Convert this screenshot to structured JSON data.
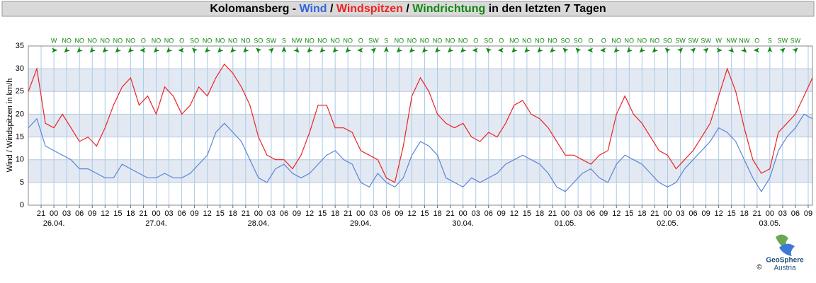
{
  "chart_data": {
    "type": "line",
    "title_parts": [
      {
        "text": "Kolomansberg - ",
        "color": "#000000"
      },
      {
        "text": "Wind",
        "color": "#3366dd"
      },
      {
        "text": " / ",
        "color": "#000000"
      },
      {
        "text": "Windspitzen",
        "color": "#ee2222"
      },
      {
        "text": " / ",
        "color": "#000000"
      },
      {
        "text": "Windrichtung",
        "color": "#118811"
      },
      {
        "text": " in den letzten 7 Tagen",
        "color": "#000000"
      }
    ],
    "ylabel": "Wind / Windspitzen in km/h",
    "x": [
      -6,
      -4,
      -2,
      0,
      2,
      4,
      6,
      8,
      10,
      12,
      14,
      16,
      18,
      20,
      22,
      24,
      26,
      28,
      30,
      32,
      34,
      36,
      38,
      40,
      42,
      44,
      46,
      48,
      50,
      52,
      54,
      56,
      58,
      60,
      62,
      64,
      66,
      68,
      70,
      72,
      74,
      76,
      78,
      80,
      82,
      84,
      86,
      88,
      90,
      92,
      94,
      96,
      98,
      100,
      102,
      104,
      106,
      108,
      110,
      112,
      114,
      116,
      118,
      120,
      122,
      124,
      126,
      128,
      130,
      132,
      134,
      136,
      138,
      140,
      142,
      144,
      146,
      148,
      150,
      152,
      154,
      156,
      158,
      160,
      162,
      164,
      166,
      168,
      170,
      172,
      174,
      176,
      178
    ],
    "series": [
      {
        "name": "Wind",
        "color": "#5b84d8",
        "values": [
          17,
          19,
          13,
          12,
          11,
          10,
          8,
          8,
          7,
          6,
          6,
          9,
          8,
          7,
          6,
          6,
          7,
          6,
          6,
          7,
          9,
          11,
          16,
          18,
          16,
          14,
          10,
          6,
          5,
          8,
          9,
          7,
          6,
          7,
          9,
          11,
          12,
          10,
          9,
          5,
          4,
          7,
          5,
          4,
          6,
          11,
          14,
          13,
          11,
          6,
          5,
          4,
          6,
          5,
          6,
          7,
          9,
          10,
          11,
          10,
          9,
          7,
          4,
          3,
          5,
          7,
          8,
          6,
          5,
          9,
          11,
          10,
          9,
          7,
          5,
          4,
          5,
          8,
          10,
          12,
          14,
          17,
          16,
          14,
          10,
          6,
          3,
          6,
          12,
          15,
          17,
          20,
          19
        ]
      },
      {
        "name": "Windspitzen",
        "color": "#ee2222",
        "values": [
          25,
          30,
          18,
          17,
          20,
          17,
          14,
          15,
          13,
          17,
          22,
          26,
          28,
          22,
          24,
          20,
          26,
          24,
          20,
          22,
          26,
          24,
          28,
          31,
          29,
          26,
          22,
          15,
          11,
          10,
          10,
          8,
          11,
          16,
          22,
          22,
          17,
          17,
          16,
          12,
          11,
          10,
          6,
          5,
          13,
          24,
          28,
          25,
          20,
          18,
          17,
          18,
          15,
          14,
          16,
          15,
          18,
          22,
          23,
          20,
          19,
          17,
          14,
          11,
          11,
          10,
          9,
          11,
          12,
          20,
          24,
          20,
          18,
          15,
          12,
          11,
          8,
          10,
          12,
          15,
          18,
          24,
          30,
          25,
          17,
          10,
          7,
          8,
          16,
          18,
          20,
          24,
          28
        ]
      }
    ],
    "xlim": [
      -6,
      178
    ],
    "ylim": [
      0,
      35
    ],
    "yticks": [
      0,
      5,
      10,
      15,
      20,
      25,
      30,
      35
    ],
    "band_shading": true,
    "grid": true,
    "xticks": [
      {
        "value": -3,
        "label": "21"
      },
      {
        "value": 0,
        "label": "00"
      },
      {
        "value": 3,
        "label": "03"
      },
      {
        "value": 6,
        "label": "06"
      },
      {
        "value": 9,
        "label": "09"
      },
      {
        "value": 12,
        "label": "12"
      },
      {
        "value": 15,
        "label": "15"
      },
      {
        "value": 18,
        "label": "18"
      },
      {
        "value": 21,
        "label": "21"
      },
      {
        "value": 24,
        "label": "00"
      },
      {
        "value": 27,
        "label": "03"
      },
      {
        "value": 30,
        "label": "06"
      },
      {
        "value": 33,
        "label": "09"
      },
      {
        "value": 36,
        "label": "12"
      },
      {
        "value": 39,
        "label": "15"
      },
      {
        "value": 42,
        "label": "18"
      },
      {
        "value": 45,
        "label": "21"
      },
      {
        "value": 48,
        "label": "00"
      },
      {
        "value": 51,
        "label": "03"
      },
      {
        "value": 54,
        "label": "06"
      },
      {
        "value": 57,
        "label": "09"
      },
      {
        "value": 60,
        "label": "12"
      },
      {
        "value": 63,
        "label": "15"
      },
      {
        "value": 66,
        "label": "18"
      },
      {
        "value": 69,
        "label": "21"
      },
      {
        "value": 72,
        "label": "00"
      },
      {
        "value": 75,
        "label": "03"
      },
      {
        "value": 78,
        "label": "06"
      },
      {
        "value": 81,
        "label": "09"
      },
      {
        "value": 84,
        "label": "12"
      },
      {
        "value": 87,
        "label": "15"
      },
      {
        "value": 90,
        "label": "18"
      },
      {
        "value": 93,
        "label": "21"
      },
      {
        "value": 96,
        "label": "00"
      },
      {
        "value": 99,
        "label": "03"
      },
      {
        "value": 102,
        "label": "06"
      },
      {
        "value": 105,
        "label": "09"
      },
      {
        "value": 108,
        "label": "12"
      },
      {
        "value": 111,
        "label": "15"
      },
      {
        "value": 114,
        "label": "18"
      },
      {
        "value": 117,
        "label": "21"
      },
      {
        "value": 120,
        "label": "00"
      },
      {
        "value": 123,
        "label": "03"
      },
      {
        "value": 126,
        "label": "06"
      },
      {
        "value": 129,
        "label": "09"
      },
      {
        "value": 132,
        "label": "12"
      },
      {
        "value": 135,
        "label": "15"
      },
      {
        "value": 138,
        "label": "18"
      },
      {
        "value": 141,
        "label": "21"
      },
      {
        "value": 144,
        "label": "00"
      },
      {
        "value": 147,
        "label": "03"
      },
      {
        "value": 150,
        "label": "06"
      },
      {
        "value": 153,
        "label": "09"
      },
      {
        "value": 156,
        "label": "12"
      },
      {
        "value": 159,
        "label": "15"
      },
      {
        "value": 162,
        "label": "18"
      },
      {
        "value": 165,
        "label": "21"
      },
      {
        "value": 168,
        "label": "00"
      },
      {
        "value": 171,
        "label": "03"
      },
      {
        "value": 174,
        "label": "06"
      },
      {
        "value": 177,
        "label": "09"
      }
    ],
    "day_labels": [
      {
        "value": 0,
        "label": "26.04."
      },
      {
        "value": 24,
        "label": "27.04."
      },
      {
        "value": 48,
        "label": "28.04."
      },
      {
        "value": 72,
        "label": "29.04."
      },
      {
        "value": 96,
        "label": "30.04."
      },
      {
        "value": 120,
        "label": "01.05."
      },
      {
        "value": 144,
        "label": "02.05."
      },
      {
        "value": 168,
        "label": "03.05."
      }
    ],
    "directions": {
      "color": "#118811",
      "x": [
        0,
        3,
        6,
        9,
        12,
        15,
        18,
        21,
        24,
        27,
        30,
        33,
        36,
        39,
        42,
        45,
        48,
        51,
        54,
        57,
        60,
        63,
        66,
        69,
        72,
        75,
        78,
        81,
        84,
        87,
        90,
        93,
        96,
        99,
        102,
        105,
        108,
        111,
        114,
        117,
        120,
        123,
        126,
        129,
        132,
        135,
        138,
        141,
        144,
        147,
        150,
        153,
        156,
        159,
        162,
        165,
        168,
        171,
        174
      ],
      "labels": [
        "W",
        "NO",
        "NO",
        "NO",
        "NO",
        "NO",
        "NO",
        "O",
        "NO",
        "NO",
        "O",
        "SO",
        "NO",
        "NO",
        "NO",
        "NO",
        "SO",
        "SW",
        "S",
        "NW",
        "NO",
        "NO",
        "NO",
        "NO",
        "O",
        "SW",
        "S",
        "NO",
        "NO",
        "NO",
        "NO",
        "NO",
        "NO",
        "O",
        "SO",
        "O",
        "NO",
        "NO",
        "NO",
        "NO",
        "SO",
        "SO",
        "O",
        "O",
        "NO",
        "NO",
        "NO",
        "NO",
        "SO",
        "SW",
        "SW",
        "SW",
        "W",
        "NW",
        "NW",
        "O",
        "S",
        "SW",
        "SW"
      ]
    },
    "logo": {
      "copyright": "©",
      "name": "GeoSphere",
      "country": "Austria"
    }
  }
}
